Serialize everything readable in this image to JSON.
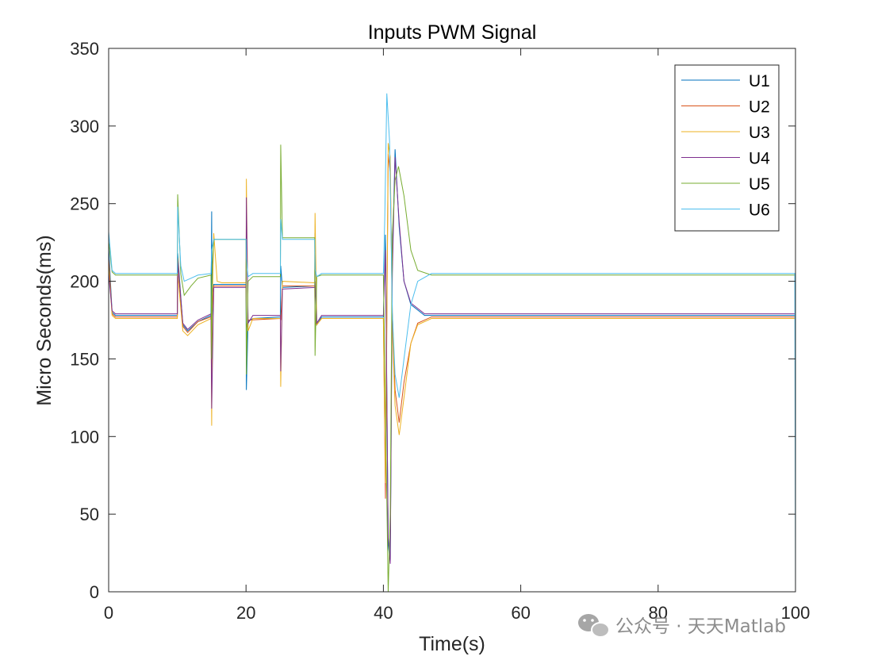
{
  "chart_data": {
    "type": "line",
    "title": "Inputs PWM  Signal",
    "xlabel": "Time(s)",
    "ylabel": "Micro Seconds(ms)",
    "xlim": [
      0,
      100
    ],
    "ylim": [
      0,
      350
    ],
    "xticks": [
      0,
      20,
      40,
      60,
      80,
      100
    ],
    "yticks": [
      0,
      50,
      100,
      150,
      200,
      250,
      300,
      350
    ],
    "grid": false,
    "legend_position": "top-right",
    "series": [
      {
        "name": "U1",
        "color": "#0072bd",
        "points": [
          [
            0,
            222
          ],
          [
            0.5,
            180
          ],
          [
            1,
            178
          ],
          [
            10,
            178
          ],
          [
            10.05,
            218
          ],
          [
            10.8,
            172
          ],
          [
            11.5,
            168
          ],
          [
            13,
            174
          ],
          [
            14.9,
            178
          ],
          [
            15,
            245
          ],
          [
            15.05,
            175
          ],
          [
            15.3,
            198
          ],
          [
            20,
            198
          ],
          [
            20.05,
            130
          ],
          [
            20.3,
            174
          ],
          [
            21,
            176
          ],
          [
            25,
            177
          ],
          [
            25.05,
            210
          ],
          [
            25.3,
            196
          ],
          [
            30,
            197
          ],
          [
            30.05,
            231
          ],
          [
            30.3,
            172
          ],
          [
            31,
            177
          ],
          [
            40,
            177
          ],
          [
            40.3,
            230
          ],
          [
            40.7,
            30
          ],
          [
            41.0,
            20
          ],
          [
            41.3,
            210
          ],
          [
            41.7,
            285
          ],
          [
            42.3,
            235
          ],
          [
            43,
            200
          ],
          [
            44,
            185
          ],
          [
            46,
            178
          ],
          [
            100,
            178
          ]
        ]
      },
      {
        "name": "U2",
        "color": "#d95319",
        "points": [
          [
            0,
            215
          ],
          [
            0.5,
            179
          ],
          [
            1,
            177
          ],
          [
            10,
            177
          ],
          [
            10.05,
            215
          ],
          [
            10.8,
            171
          ],
          [
            11.5,
            167
          ],
          [
            13,
            174
          ],
          [
            14.9,
            177
          ],
          [
            15,
            175
          ],
          [
            15.3,
            197
          ],
          [
            20,
            197
          ],
          [
            20.05,
            170
          ],
          [
            20.3,
            175
          ],
          [
            25,
            176
          ],
          [
            25.05,
            175
          ],
          [
            25.3,
            197
          ],
          [
            30,
            197
          ],
          [
            30.05,
            175
          ],
          [
            30.3,
            172
          ],
          [
            31,
            176
          ],
          [
            40,
            176
          ],
          [
            40.3,
            60
          ],
          [
            40.7,
            282
          ],
          [
            41.0,
            270
          ],
          [
            41.3,
            180
          ],
          [
            41.7,
            130
          ],
          [
            42.3,
            109
          ],
          [
            43,
            135
          ],
          [
            44,
            160
          ],
          [
            45,
            173
          ],
          [
            47,
            177
          ],
          [
            100,
            177
          ]
        ]
      },
      {
        "name": "U3",
        "color": "#edb120",
        "points": [
          [
            0,
            210
          ],
          [
            0.5,
            178
          ],
          [
            1,
            176
          ],
          [
            10,
            176
          ],
          [
            10.05,
            205
          ],
          [
            10.8,
            168
          ],
          [
            11.5,
            165
          ],
          [
            13,
            172
          ],
          [
            14.9,
            176
          ],
          [
            15,
            107
          ],
          [
            15.1,
            190
          ],
          [
            15.3,
            231
          ],
          [
            15.8,
            200
          ],
          [
            16.5,
            199
          ],
          [
            20,
            199
          ],
          [
            20.05,
            266
          ],
          [
            20.3,
            168
          ],
          [
            21,
            176
          ],
          [
            25,
            176
          ],
          [
            25.05,
            132
          ],
          [
            25.3,
            200
          ],
          [
            30,
            199
          ],
          [
            30.05,
            244
          ],
          [
            30.3,
            172
          ],
          [
            31,
            176
          ],
          [
            40,
            176
          ],
          [
            40.3,
            70
          ],
          [
            40.7,
            289
          ],
          [
            41.0,
            280
          ],
          [
            41.3,
            170
          ],
          [
            41.7,
            120
          ],
          [
            42.3,
            101
          ],
          [
            43,
            125
          ],
          [
            44,
            160
          ],
          [
            45,
            172
          ],
          [
            47,
            176
          ],
          [
            100,
            176
          ]
        ]
      },
      {
        "name": "U4",
        "color": "#7e2f8e",
        "points": [
          [
            0,
            205
          ],
          [
            0.5,
            181
          ],
          [
            1,
            179
          ],
          [
            10,
            179
          ],
          [
            10.05,
            212
          ],
          [
            10.8,
            173
          ],
          [
            11.5,
            169
          ],
          [
            13,
            175
          ],
          [
            14.9,
            179
          ],
          [
            15,
            118
          ],
          [
            15.3,
            196
          ],
          [
            20,
            196
          ],
          [
            20.05,
            254
          ],
          [
            20.3,
            173
          ],
          [
            21,
            178
          ],
          [
            25,
            178
          ],
          [
            25.05,
            142
          ],
          [
            25.3,
            195
          ],
          [
            30,
            196
          ],
          [
            30.05,
            200
          ],
          [
            30.3,
            173
          ],
          [
            31,
            178
          ],
          [
            40,
            178
          ],
          [
            40.3,
            220
          ],
          [
            40.7,
            35
          ],
          [
            41.0,
            18
          ],
          [
            41.3,
            205
          ],
          [
            41.7,
            280
          ],
          [
            42.3,
            238
          ],
          [
            43,
            200
          ],
          [
            44,
            186
          ],
          [
            46,
            179
          ],
          [
            100,
            179
          ]
        ]
      },
      {
        "name": "U5",
        "color": "#77ac30",
        "points": [
          [
            0,
            226
          ],
          [
            0.5,
            206
          ],
          [
            1,
            204
          ],
          [
            10,
            204
          ],
          [
            10.05,
            256
          ],
          [
            10.5,
            205
          ],
          [
            11,
            191
          ],
          [
            12,
            197
          ],
          [
            13,
            202
          ],
          [
            14.9,
            204
          ],
          [
            15,
            150
          ],
          [
            15.1,
            210
          ],
          [
            15.3,
            227
          ],
          [
            20,
            227
          ],
          [
            20.05,
            140
          ],
          [
            20.3,
            200
          ],
          [
            21,
            203
          ],
          [
            25,
            203
          ],
          [
            25.05,
            288
          ],
          [
            25.3,
            228
          ],
          [
            30,
            228
          ],
          [
            30.05,
            152
          ],
          [
            30.3,
            203
          ],
          [
            31,
            204
          ],
          [
            40,
            204
          ],
          [
            40.3,
            120
          ],
          [
            40.7,
            0
          ],
          [
            41.0,
            50
          ],
          [
            41.3,
            230
          ],
          [
            41.7,
            265
          ],
          [
            42.2,
            274
          ],
          [
            43,
            255
          ],
          [
            44,
            220
          ],
          [
            45,
            207
          ],
          [
            47,
            204
          ],
          [
            100,
            204
          ]
        ]
      },
      {
        "name": "U6",
        "color": "#4dbeee",
        "points": [
          [
            0,
            232
          ],
          [
            0.5,
            207
          ],
          [
            1,
            205
          ],
          [
            10,
            205
          ],
          [
            10.05,
            248
          ],
          [
            10.5,
            210
          ],
          [
            11,
            200
          ],
          [
            12,
            202
          ],
          [
            13,
            204
          ],
          [
            14.9,
            205
          ],
          [
            15,
            220
          ],
          [
            15.3,
            227
          ],
          [
            20,
            227
          ],
          [
            20.05,
            215
          ],
          [
            20.3,
            203
          ],
          [
            21,
            205
          ],
          [
            25,
            205
          ],
          [
            25.05,
            240
          ],
          [
            25.3,
            227
          ],
          [
            30,
            227
          ],
          [
            30.05,
            208
          ],
          [
            30.3,
            203
          ],
          [
            31,
            205
          ],
          [
            40,
            205
          ],
          [
            40.2,
            240
          ],
          [
            40.5,
            321
          ],
          [
            40.9,
            290
          ],
          [
            41.3,
            180
          ],
          [
            41.7,
            140
          ],
          [
            42.3,
            125
          ],
          [
            43,
            150
          ],
          [
            44,
            185
          ],
          [
            45,
            200
          ],
          [
            47,
            205
          ],
          [
            99.9,
            205
          ],
          [
            100,
            0
          ]
        ]
      }
    ]
  },
  "watermark": {
    "text": "公众号 · 天天Matlab",
    "icon": "wechat-icon"
  }
}
